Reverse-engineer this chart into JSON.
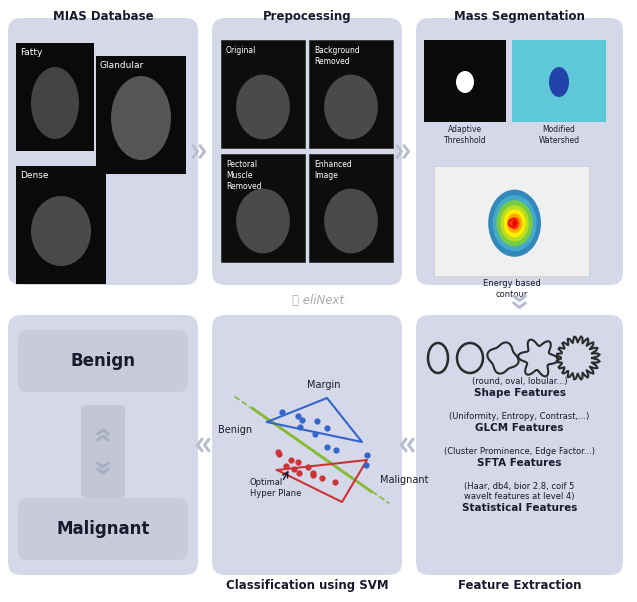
{
  "bg_color": "#ffffff",
  "box_color": "#d4d8e8",
  "box_inner": "#c8ccda",
  "title_color": "#1a1a2e",
  "arrow_color": "#b8bdd0",
  "section_titles": [
    "MIAS Database",
    "Prepocessing",
    "Mass Segmentation"
  ],
  "bottom_titles_left": "Classification using SVM",
  "bottom_titles_right": "Feature Extraction",
  "benign_label": "Benign",
  "malignant_label": "Malignant",
  "adaptive_label": "Adaptive\nThreshhold",
  "watershed_label": "Modified\nWatershed",
  "energy_label": "Energy based\ncontour",
  "elinext_label": "⫝ eliNext",
  "shape_line1": "(round, oval, lobular...)",
  "shape_line2": "Shape Features",
  "glcm_line1": "(Uniformity, Entropy, Contrast,...)",
  "glcm_line2": "GLCM Features",
  "sfta_line1": "(Cluster Prominence, Edge Factor...)",
  "sfta_line2": "SFTA Features",
  "stat_line1": "(Haar, db4, bior 2.8, coif 5",
  "stat_line2": "wavelt features at level 4)",
  "stat_line3": "Statistical Features",
  "svm_margin": "Margin",
  "svm_benign": "Benign",
  "svm_malignant": "Malignant",
  "svm_hyper": "Optimal\nHyper Plane"
}
